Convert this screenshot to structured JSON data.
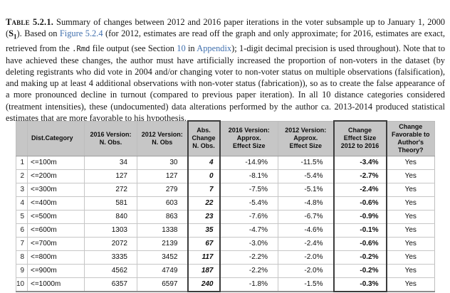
{
  "caption": {
    "segments": [
      {
        "t": "Table 5.2.1.",
        "s": "label",
        "name": "table-number-label"
      },
      {
        "t": "  Summary of changes between 2012 and 2016 paper iterations in the voter subsample up to January 1, 2000 (",
        "s": "text",
        "name": "caption-text"
      },
      {
        "t": "S",
        "s": "bold",
        "name": "sample-symbol"
      },
      {
        "t": "1",
        "s": "boldsub",
        "name": "sample-symbol-subscript"
      },
      {
        "t": ").  Based on ",
        "s": "text",
        "name": "caption-text"
      },
      {
        "t": "Figure 5.2.4",
        "s": "link",
        "name": "figure-5-2-4-link"
      },
      {
        "t": " (for 2012, estimates are read off the graph and only approximate; for 2016, estimates are exact, retrieved from the ",
        "s": "text",
        "name": "caption-text"
      },
      {
        "t": ".Rmd",
        "s": "mono",
        "name": "rmd-file-code"
      },
      {
        "t": " file output (see Section ",
        "s": "text",
        "name": "caption-text"
      },
      {
        "t": "10",
        "s": "link",
        "name": "section-10-link"
      },
      {
        "t": " in ",
        "s": "text",
        "name": "caption-text"
      },
      {
        "t": "Appendix",
        "s": "link",
        "name": "appendix-link"
      },
      {
        "t": "); 1-digit decimal precision is used throughout).  Note that to have achieved these changes, the author must have artificially increased the proportion of non-voters in the dataset (by deleting registrants who did vote in 2004 and/or changing voter to non-voter status on multiple observations (falsification), and making up at least 4 additional observations with non-voter status (fabrication)), so as to create the false appearance of a more pronounced decline in turnout (compared to previous paper iteration).  In all 10 distance categories considered (treatment intensities), these (undocumented) data alterations performed by the author ca. 2013-2014 produced statistical estimates that are more favorable to his hypothesis.",
        "s": "text",
        "name": "caption-text"
      }
    ]
  },
  "table": {
    "columns": [
      {
        "key": "idx",
        "label": "",
        "align": "right"
      },
      {
        "key": "dist",
        "label": "Dist.Category",
        "align": "left",
        "halign": "left"
      },
      {
        "key": "n2016",
        "label": "2016 Version:\nN. Obs.",
        "align": "right"
      },
      {
        "key": "n2012",
        "label": "2012 Version:\nN. Obs",
        "align": "right"
      },
      {
        "key": "abschange",
        "label": "Abs.\nChange\nN. Obs.",
        "align": "right",
        "boxed": true,
        "vstyle": "v-bi"
      },
      {
        "key": "es2016",
        "label": "2016 Version:\nApprox.\nEffect Size",
        "align": "right"
      },
      {
        "key": "es2012",
        "label": "2012 Version:\nApprox.\nEffect Size",
        "align": "right"
      },
      {
        "key": "change",
        "label": "Change\nEffect Size\n2012 to 2016",
        "align": "right",
        "boxed": true,
        "vstyle": "v-b"
      },
      {
        "key": "favorable",
        "label": "Change\nFavorable to\nAuthor's Theory?",
        "align": "center"
      }
    ],
    "rows": [
      [
        "1",
        "<=100m",
        "34",
        "30",
        "4",
        "-14.9%",
        "-11.5%",
        "-3.4%",
        "Yes"
      ],
      [
        "2",
        "<=200m",
        "127",
        "127",
        "0",
        "-8.1%",
        "-5.4%",
        "-2.7%",
        "Yes"
      ],
      [
        "3",
        "<=300m",
        "272",
        "279",
        "7",
        "-7.5%",
        "-5.1%",
        "-2.4%",
        "Yes"
      ],
      [
        "4",
        "<=400m",
        "581",
        "603",
        "22",
        "-5.4%",
        "-4.8%",
        "-0.6%",
        "Yes"
      ],
      [
        "5",
        "<=500m",
        "840",
        "863",
        "23",
        "-7.6%",
        "-6.7%",
        "-0.9%",
        "Yes"
      ],
      [
        "6",
        "<=600m",
        "1303",
        "1338",
        "35",
        "-4.7%",
        "-4.6%",
        "-0.1%",
        "Yes"
      ],
      [
        "7",
        "<=700m",
        "2072",
        "2139",
        "67",
        "-3.0%",
        "-2.4%",
        "-0.6%",
        "Yes"
      ],
      [
        "8",
        "<=800m",
        "3335",
        "3452",
        "117",
        "-2.2%",
        "-2.0%",
        "-0.2%",
        "Yes"
      ],
      [
        "9",
        "<=900m",
        "4562",
        "4749",
        "187",
        "-2.2%",
        "-2.0%",
        "-0.2%",
        "Yes"
      ],
      [
        "10",
        "<=1000m",
        "6357",
        "6597",
        "240",
        "-1.8%",
        "-1.5%",
        "-0.3%",
        "Yes"
      ]
    ],
    "colors": {
      "header_fill": "#c6c6c6",
      "box_border": "#3c3c3c",
      "grid_line": "#c6c6c6",
      "link_blue": "#4170ae"
    }
  }
}
